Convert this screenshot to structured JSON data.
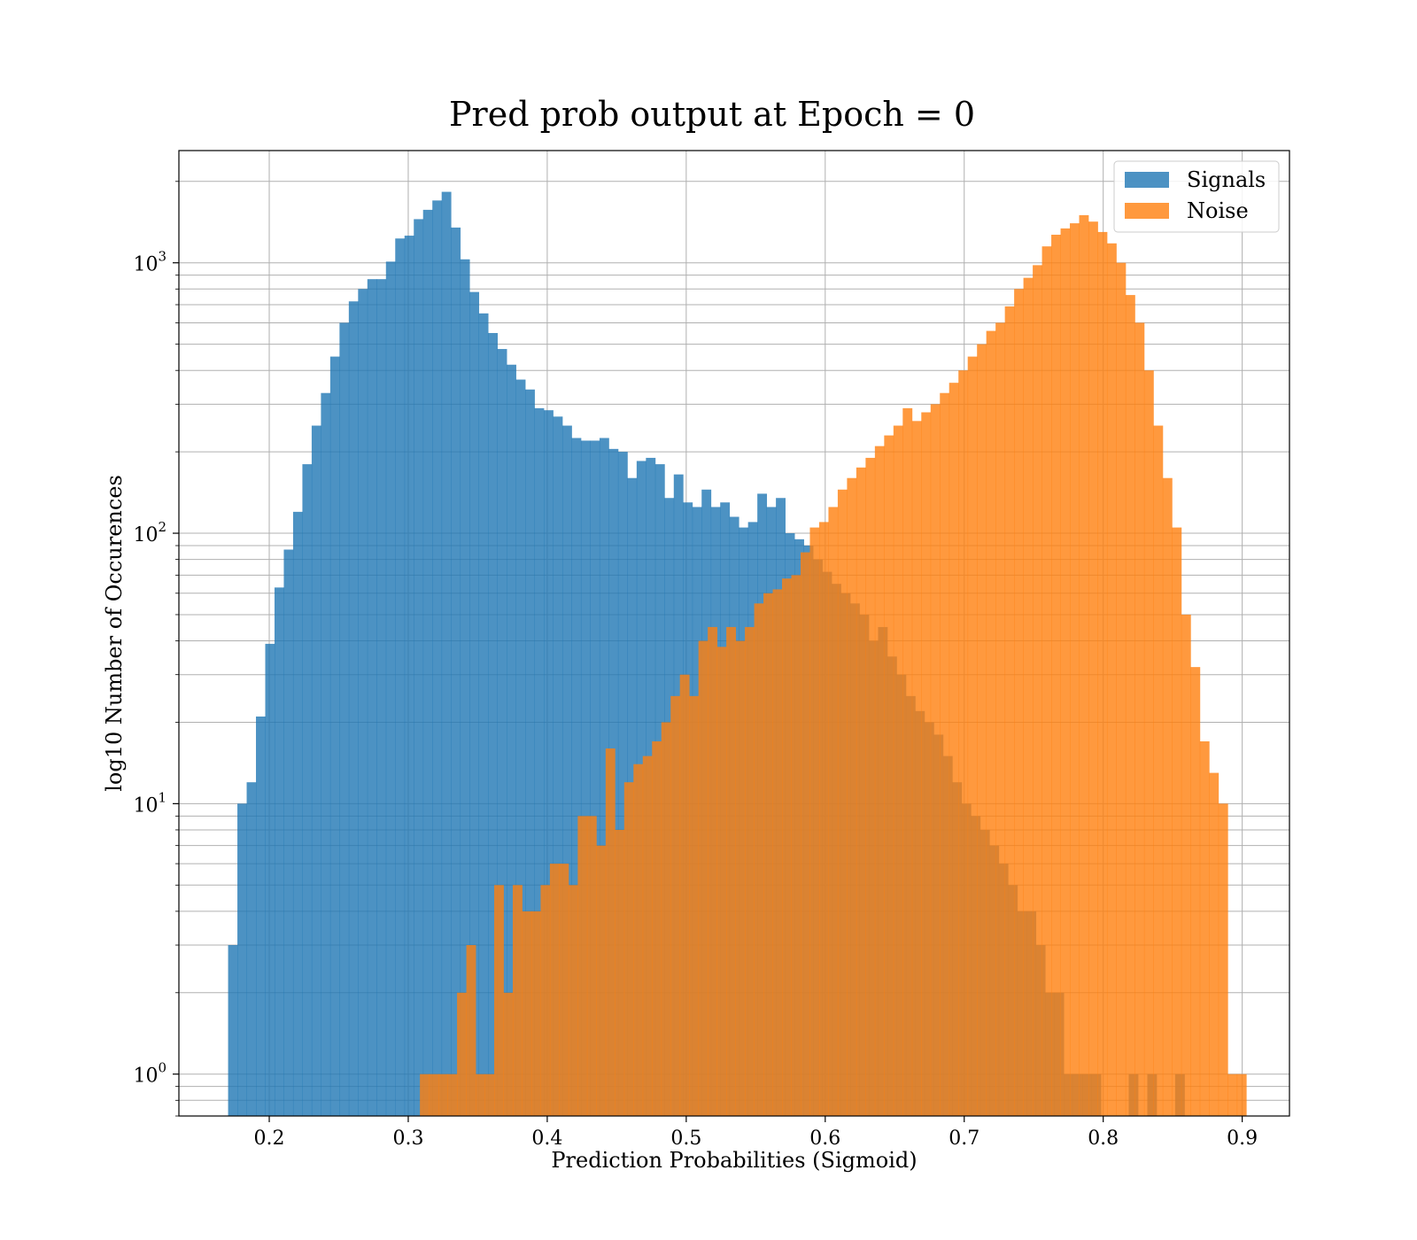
{
  "chart_data": {
    "type": "bar",
    "title": "Pred prob output at Epoch = 0",
    "xlabel": "Prediction Probabilities (Sigmoid)",
    "ylabel": "log10 Number of Occurences",
    "xlim": [
      0.135,
      0.934
    ],
    "ylim": [
      0.7,
      2600
    ],
    "yscale": "log",
    "grid": true,
    "legend": "top-right",
    "xticks": [
      "0.2",
      "0.3",
      "0.4",
      "0.5",
      "0.6",
      "0.7",
      "0.8",
      "0.9"
    ],
    "yticks": [
      {
        "base": "10",
        "exp": "0",
        "value": 1
      },
      {
        "base": "10",
        "exp": "1",
        "value": 10
      },
      {
        "base": "10",
        "exp": "2",
        "value": 100
      },
      {
        "base": "10",
        "exp": "3",
        "value": 1000
      }
    ],
    "series": [
      {
        "name": "Signals",
        "color": "#1f77b4",
        "x_start": 0.1704,
        "bin_width": 0.00668,
        "values": [
          3,
          10,
          12,
          21,
          39,
          63,
          87,
          120,
          180,
          250,
          330,
          450,
          600,
          720,
          800,
          870,
          870,
          1010,
          1230,
          1260,
          1450,
          1570,
          1700,
          1830,
          1350,
          1030,
          780,
          650,
          550,
          480,
          420,
          370,
          340,
          290,
          285,
          270,
          250,
          225,
          220,
          220,
          225,
          205,
          200,
          160,
          185,
          190,
          180,
          135,
          165,
          130,
          125,
          145,
          125,
          130,
          115,
          105,
          110,
          140,
          125,
          135,
          100,
          95,
          90,
          80,
          72,
          65,
          60,
          55,
          50,
          40,
          45,
          35,
          30,
          25,
          22,
          20,
          18,
          15,
          12,
          10,
          9,
          8,
          7,
          6,
          5,
          4,
          4,
          3,
          2,
          2,
          1,
          1,
          1,
          1,
          0,
          0,
          0,
          1,
          0,
          1,
          0,
          0,
          1,
          0,
          0,
          0,
          0,
          0,
          0,
          0,
          0,
          0,
          0,
          0,
          0
        ]
      },
      {
        "name": "Noise",
        "color": "#ff7f0e",
        "x_start": 0.3084,
        "bin_width": 0.00668,
        "values": [
          1,
          1,
          1,
          1,
          2,
          3,
          1,
          1,
          5,
          2,
          5,
          4,
          4,
          5,
          6,
          6,
          5,
          9,
          9,
          7,
          16,
          8,
          12,
          14,
          15,
          17,
          20,
          25,
          30,
          25,
          40,
          45,
          38,
          45,
          40,
          45,
          55,
          60,
          62,
          68,
          70,
          85,
          105,
          110,
          125,
          145,
          160,
          175,
          190,
          210,
          230,
          250,
          290,
          260,
          280,
          300,
          330,
          360,
          400,
          450,
          500,
          560,
          600,
          690,
          800,
          880,
          980,
          1150,
          1270,
          1340,
          1400,
          1500,
          1420,
          1300,
          1180,
          1000,
          760,
          600,
          400,
          250,
          160,
          105,
          50,
          32,
          17,
          13,
          10,
          1,
          1
        ]
      }
    ]
  }
}
